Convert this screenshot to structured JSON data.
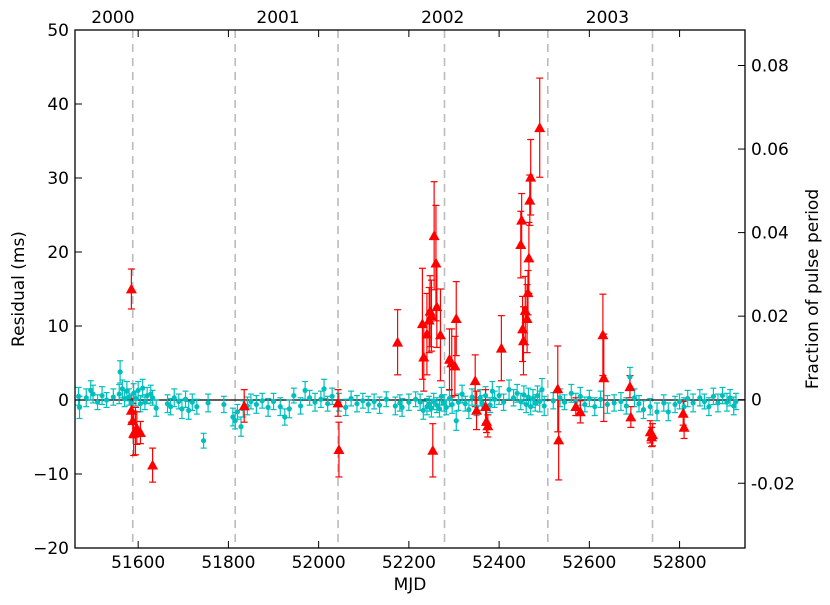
{
  "chart_data": {
    "type": "scatter",
    "xlabel": "MJD",
    "ylabel": "Residual (ms)",
    "y2label": "Fraction of pulse period",
    "xlim": [
      51460,
      52945
    ],
    "ylim": [
      -20,
      50
    ],
    "y2lim": [
      -0.0355,
      0.0885
    ],
    "x_ticks": [
      51600,
      51800,
      52000,
      52200,
      52400,
      52600,
      52800
    ],
    "y_ticks": [
      -20,
      -10,
      0,
      10,
      20,
      30,
      40,
      50
    ],
    "y2_ticks": [
      {
        "value": -0.02,
        "label": "-0.02"
      },
      {
        "value": 0,
        "label": "0"
      },
      {
        "value": 0.02,
        "label": "0.02"
      },
      {
        "value": 0.04,
        "label": "0.04"
      },
      {
        "value": 0.06,
        "label": "0.06"
      },
      {
        "value": 0.08,
        "label": "0.08"
      }
    ],
    "year_markers": [
      {
        "label": "2000",
        "mjd": 51544
      },
      {
        "label": "2001",
        "mjd": 51910
      },
      {
        "label": "2002",
        "mjd": 52275
      },
      {
        "label": "2003",
        "mjd": 52640
      }
    ],
    "vertical_dashed_lines": [
      51588,
      51815,
      52043,
      52279,
      52508,
      52740
    ],
    "zero_line": 0,
    "grid": false,
    "colors": {
      "cyan_series": "#00bfbf",
      "red_series": "#ff0000",
      "dashed_line": "#bbbbbb",
      "zero_line": "#000000"
    },
    "series": [
      {
        "marker": "circle",
        "color": "#00bfbf",
        "points": [
          [
            51468,
            0.5,
            1.2
          ],
          [
            51470,
            -1,
            1.5
          ],
          [
            51485,
            0.3,
            1.2
          ],
          [
            51495,
            1.3,
            1.3
          ],
          [
            51500,
            0.8,
            1.2
          ],
          [
            51510,
            -0.3,
            1.0
          ],
          [
            51520,
            0.6,
            1.2
          ],
          [
            51530,
            0,
            1.0
          ],
          [
            51545,
            0.4,
            1.1
          ],
          [
            51558,
            0.8,
            1.3
          ],
          [
            51560,
            3.8,
            1.5
          ],
          [
            51565,
            1.5,
            1.2
          ],
          [
            51570,
            0.2,
            1.1
          ],
          [
            51575,
            1.2,
            1.3
          ],
          [
            51580,
            0.4,
            1.1
          ],
          [
            51585,
            -0.4,
            1.2
          ],
          [
            51590,
            0.9,
            1.3
          ],
          [
            51595,
            0.2,
            1.0
          ],
          [
            51600,
            1.3,
            1.2
          ],
          [
            51605,
            -0.5,
            1.1
          ],
          [
            51610,
            1.6,
            1.2
          ],
          [
            51615,
            -0.3,
            1.0
          ],
          [
            51620,
            0.6,
            1.1
          ],
          [
            51628,
            0.8,
            1.2
          ],
          [
            51632,
            0.3,
            1.0
          ],
          [
            51640,
            -1.1,
            1.1
          ],
          [
            51665,
            -0.5,
            1.2
          ],
          [
            51672,
            -0.9,
            1.1
          ],
          [
            51680,
            0.3,
            1.2
          ],
          [
            51690,
            -0.2,
            1.0
          ],
          [
            51697,
            -1.2,
            1.3
          ],
          [
            51705,
            0.1,
            1.1
          ],
          [
            51712,
            -1.4,
            1.2
          ],
          [
            51720,
            -0.3,
            1.1
          ],
          [
            51730,
            -0.9,
            1.0
          ],
          [
            51745,
            -5.5,
            1.0
          ],
          [
            51755,
            -0.4,
            1.2
          ],
          [
            51790,
            -0.6,
            1.1
          ],
          [
            51810,
            -2.3,
            1.2
          ],
          [
            51815,
            -2.8,
            1.1
          ],
          [
            51820,
            -1.6,
            1.0
          ],
          [
            51828,
            -3.6,
            1.3
          ],
          [
            51833,
            -1.2,
            1.1
          ],
          [
            51842,
            -0.8,
            1.2
          ],
          [
            51850,
            -0.2,
            1.0
          ],
          [
            51862,
            -0.6,
            1.2
          ],
          [
            51875,
            -0.1,
            1.0
          ],
          [
            51888,
            -1.0,
            1.2
          ],
          [
            51900,
            -0.2,
            1.1
          ],
          [
            51915,
            -0.9,
            1.2
          ],
          [
            51925,
            -2.3,
            1.1
          ],
          [
            51935,
            -1.2,
            1.2
          ],
          [
            51945,
            0.6,
            1.0
          ],
          [
            51960,
            -0.8,
            1.1
          ],
          [
            51970,
            1.3,
            1.2
          ],
          [
            51980,
            0.3,
            1.0
          ],
          [
            51992,
            -0.3,
            1.2
          ],
          [
            52005,
            0.1,
            1.1
          ],
          [
            52012,
            1.5,
            1.3
          ],
          [
            52020,
            -0.5,
            1.0
          ],
          [
            52030,
            0.5,
            1.1
          ],
          [
            52045,
            -0.3,
            1.2
          ],
          [
            52060,
            -1.0,
            1.1
          ],
          [
            52072,
            0.2,
            1.0
          ],
          [
            52085,
            -0.5,
            1.1
          ],
          [
            52098,
            -0.1,
            1.0
          ],
          [
            52110,
            -0.6,
            1.1
          ],
          [
            52123,
            -0.2,
            1.0
          ],
          [
            52135,
            -0.7,
            1.1
          ],
          [
            52150,
            0.1,
            1.0
          ],
          [
            52170,
            -0.8,
            1.2
          ],
          [
            52180,
            -0.4,
            1.1
          ],
          [
            52185,
            -1.0,
            1.2
          ],
          [
            52200,
            -0.3,
            1.1
          ],
          [
            52215,
            0.1,
            1.0
          ],
          [
            52225,
            -0.3,
            1.1
          ],
          [
            52232,
            -1.4,
            1.2
          ],
          [
            52240,
            -0.9,
            1.1
          ],
          [
            52245,
            -0.5,
            1.0
          ],
          [
            52250,
            -1.1,
            1.2
          ],
          [
            52255,
            -0.2,
            1.1
          ],
          [
            52262,
            -0.7,
            1.0
          ],
          [
            52268,
            -1.2,
            1.1
          ],
          [
            52272,
            0.5,
            1.2
          ],
          [
            52278,
            -0.4,
            1.1
          ],
          [
            52283,
            -1.0,
            1.0
          ],
          [
            52290,
            0.2,
            1.1
          ],
          [
            52296,
            -0.6,
            1.2
          ],
          [
            52305,
            -2.8,
            1.3
          ],
          [
            52310,
            -0.3,
            1.1
          ],
          [
            52318,
            0.8,
            1.2
          ],
          [
            52325,
            -0.5,
            1.0
          ],
          [
            52333,
            -1.3,
            1.2
          ],
          [
            52340,
            0.4,
            1.1
          ],
          [
            52350,
            -0.9,
            1.2
          ],
          [
            52358,
            0.3,
            1.1
          ],
          [
            52362,
            -0.4,
            1.0
          ],
          [
            52370,
            0.6,
            1.2
          ],
          [
            52380,
            -0.7,
            1.0
          ],
          [
            52385,
            1.2,
            1.3
          ],
          [
            52390,
            0.1,
            1.1
          ],
          [
            52400,
            0.6,
            1.2
          ],
          [
            52410,
            -0.3,
            1.1
          ],
          [
            52422,
            1.4,
            1.3
          ],
          [
            52432,
            0.3,
            1.1
          ],
          [
            52440,
            0.9,
            1.2
          ],
          [
            52448,
            -0.2,
            1.1
          ],
          [
            52455,
            0.7,
            1.2
          ],
          [
            52460,
            -0.6,
            1.1
          ],
          [
            52465,
            0.4,
            1.2
          ],
          [
            52470,
            -0.9,
            1.1
          ],
          [
            52475,
            0.2,
            1.2
          ],
          [
            52480,
            -0.4,
            1.1
          ],
          [
            52485,
            0.6,
            1.3
          ],
          [
            52490,
            -0.2,
            1.4
          ],
          [
            52495,
            1.4,
            1.5
          ],
          [
            52500,
            -0.8,
            1.3
          ],
          [
            52520,
            -0.1,
            1.1
          ],
          [
            52535,
            0.3,
            1.2
          ],
          [
            52545,
            -0.3,
            1.0
          ],
          [
            52560,
            0.9,
            1.2
          ],
          [
            52570,
            -0.2,
            1.1
          ],
          [
            52580,
            0.5,
            1.2
          ],
          [
            52590,
            -0.6,
            1.0
          ],
          [
            52600,
            0.2,
            1.1
          ],
          [
            52612,
            -0.9,
            1.2
          ],
          [
            52625,
            0.1,
            1.1
          ],
          [
            52640,
            -0.6,
            1.2
          ],
          [
            52655,
            -0.4,
            1.1
          ],
          [
            52670,
            -0.2,
            1.2
          ],
          [
            52682,
            -0.8,
            1.1
          ],
          [
            52690,
            3.1,
            1.3
          ],
          [
            52700,
            0.3,
            1.2
          ],
          [
            52710,
            -0.5,
            1.1
          ],
          [
            52720,
            -1.3,
            1.2
          ],
          [
            52735,
            -0.9,
            1.1
          ],
          [
            52750,
            -1.6,
            1.2
          ],
          [
            52765,
            -0.4,
            1.1
          ],
          [
            52775,
            -1.6,
            1.2
          ],
          [
            52790,
            -0.6,
            1.1
          ],
          [
            52800,
            -0.2,
            1.0
          ],
          [
            52810,
            -0.9,
            1.2
          ],
          [
            52818,
            0.2,
            1.1
          ],
          [
            52830,
            -0.4,
            1.2
          ],
          [
            52845,
            0.3,
            1.1
          ],
          [
            52855,
            -0.2,
            1.0
          ],
          [
            52865,
            -0.9,
            1.2
          ],
          [
            52875,
            0.5,
            1.1
          ],
          [
            52885,
            -0.4,
            1.2
          ],
          [
            52895,
            0.6,
            1.1
          ],
          [
            52905,
            -0.3,
            1.2
          ],
          [
            52912,
            0.3,
            1.1
          ],
          [
            52920,
            -0.8,
            1.2
          ],
          [
            52925,
            -0.2,
            1.1
          ]
        ]
      },
      {
        "marker": "triangle",
        "color": "#ff0000",
        "points": [
          [
            51585,
            15,
            2.7
          ],
          [
            51585,
            -1.4,
            1.6
          ],
          [
            51588,
            -2.8,
            2.3
          ],
          [
            51590,
            -4.5,
            3.0
          ],
          [
            51594,
            -4.2,
            3.2
          ],
          [
            51597,
            -3.8,
            2.2
          ],
          [
            51605,
            -4.4,
            1.5
          ],
          [
            51632,
            -8.8,
            2.3
          ],
          [
            51835,
            -0.8,
            2.2
          ],
          [
            52043,
            -0.4,
            1.8
          ],
          [
            52045,
            -6.7,
            3.7
          ],
          [
            52175,
            7.8,
            4.4
          ],
          [
            52230,
            10.3,
            7.5
          ],
          [
            52233,
            5.8,
            4.6
          ],
          [
            52240,
            8.9,
            5.5
          ],
          [
            52245,
            10.8,
            4.4
          ],
          [
            52247,
            12.0,
            4.8
          ],
          [
            52250,
            11.4,
            4.8
          ],
          [
            52253,
            -6.8,
            3.6
          ],
          [
            52256,
            22.2,
            7.3
          ],
          [
            52260,
            18.5,
            7.8
          ],
          [
            52262,
            12.6,
            5.5
          ],
          [
            52270,
            8.8,
            6.2
          ],
          [
            52290,
            5.5,
            4.1
          ],
          [
            52295,
            5.0,
            4.6
          ],
          [
            52302,
            4.6,
            4.0
          ],
          [
            52305,
            11.0,
            5.0
          ],
          [
            52347,
            2.6,
            3.5
          ],
          [
            52350,
            -1.4,
            2.6
          ],
          [
            52370,
            -0.9,
            2.3
          ],
          [
            52372,
            -2.9,
            1.5
          ],
          [
            52375,
            -3.5,
            1.5
          ],
          [
            52405,
            7.0,
            4.4
          ],
          [
            52448,
            21.0,
            4.5
          ],
          [
            52450,
            24.3,
            3.6
          ],
          [
            52452,
            9.6,
            4.4
          ],
          [
            52454,
            8.0,
            4.6
          ],
          [
            52458,
            12.1,
            4.6
          ],
          [
            52462,
            11.0,
            4.6
          ],
          [
            52464,
            14.5,
            3.0
          ],
          [
            52466,
            19.2,
            4.8
          ],
          [
            52468,
            27.0,
            3.4
          ],
          [
            52470,
            30.1,
            5.1
          ],
          [
            52490,
            36.8,
            6.7
          ],
          [
            52530,
            1.5,
            5.8
          ],
          [
            52532,
            -5.4,
            5.4
          ],
          [
            52570,
            -0.9,
            1.2
          ],
          [
            52580,
            -1.6,
            1.5
          ],
          [
            52630,
            8.8,
            5.5
          ],
          [
            52632,
            3.0,
            5.9
          ],
          [
            52690,
            1.8,
            1.5
          ],
          [
            52692,
            -2.3,
            1.4
          ],
          [
            52735,
            -4.3,
            1.5
          ],
          [
            52738,
            -5.0,
            1.3
          ],
          [
            52740,
            -4.7,
            1.5
          ],
          [
            52808,
            -1.8,
            1.6
          ],
          [
            52810,
            -3.7,
            1.5
          ]
        ]
      }
    ]
  }
}
